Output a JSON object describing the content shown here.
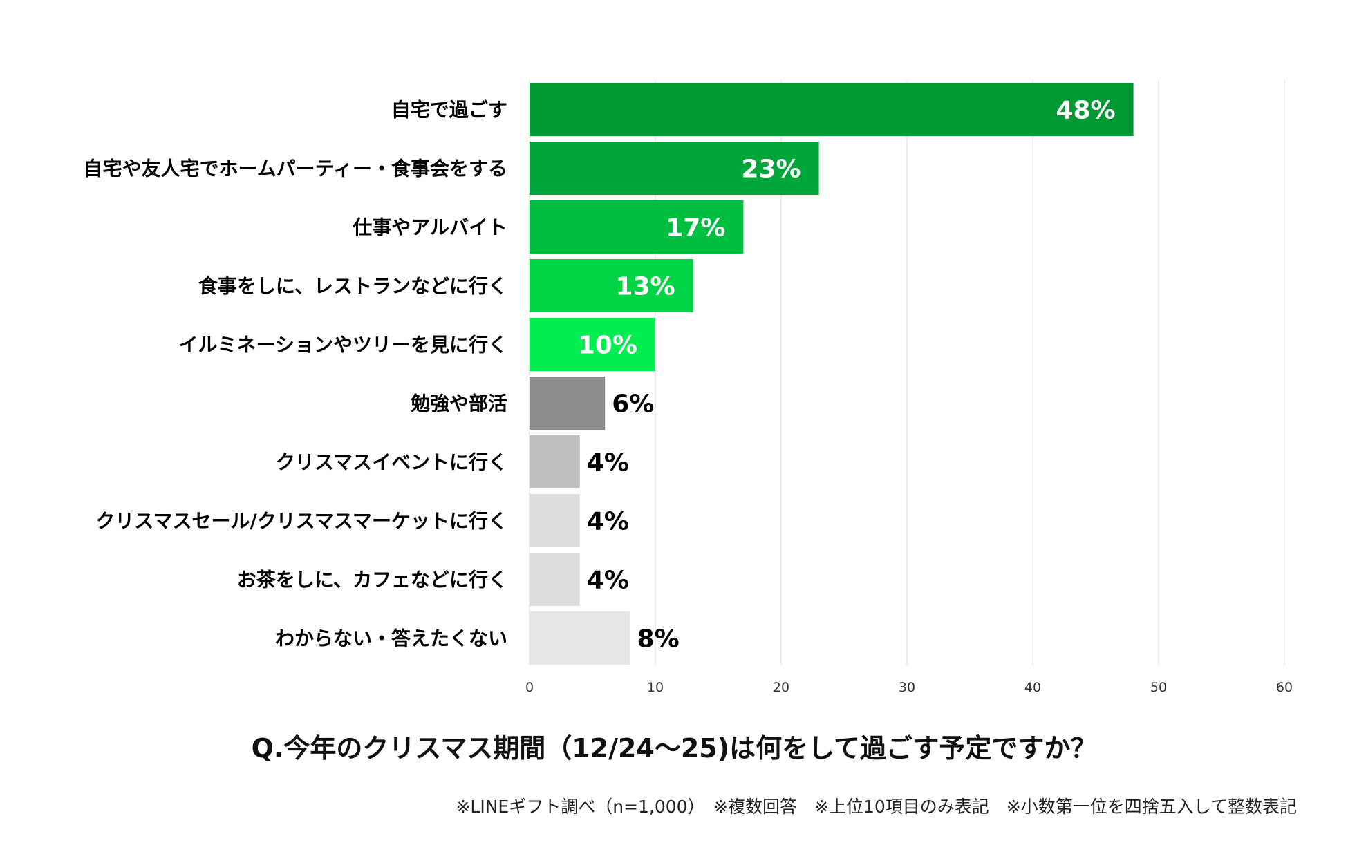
{
  "chart_data": {
    "type": "bar",
    "orientation": "horizontal",
    "categories": [
      "自宅で過ごす",
      "自宅や友人宅でホームパーティー・食事会をする",
      "仕事やアルバイト",
      "食事をしに、レストランなどに行く",
      "イルミネーションやツリーを見に行く",
      "勉強や部活",
      "クリスマスイベントに行く",
      "クリスマスセール/クリスマスマーケットに行く",
      "お茶をしに、カフェなどに行く",
      "わからない・答えたくない"
    ],
    "values": [
      48,
      23,
      17,
      13,
      10,
      6,
      4,
      4,
      4,
      8
    ],
    "value_labels": [
      "48%",
      "23%",
      "17%",
      "13%",
      "10%",
      "6%",
      "4%",
      "4%",
      "4%",
      "8%"
    ],
    "bar_colors": [
      "#009933",
      "#00A63A",
      "#00BE40",
      "#00D444",
      "#00EE50",
      "#8C8C8C",
      "#BFBFBF",
      "#DCDCDC",
      "#DCDCDC",
      "#E6E6E6"
    ],
    "label_colors": [
      "#FFFFFF",
      "#FFFFFF",
      "#FFFFFF",
      "#FFFFFF",
      "#FFFFFF",
      "#000000",
      "#000000",
      "#000000",
      "#000000",
      "#000000"
    ],
    "label_inside": [
      true,
      true,
      true,
      true,
      true,
      false,
      false,
      false,
      false,
      false
    ],
    "xlim": [
      0,
      60
    ],
    "xticks": [
      0,
      10,
      20,
      30,
      40,
      50,
      60
    ],
    "xtick_labels": [
      "0",
      "10",
      "20",
      "30",
      "40",
      "50",
      "60"
    ],
    "grid": true,
    "legend": "none",
    "title": "Q.今年のクリスマス期間（12/24～25)は何をして過ごす予定ですか？"
  },
  "footnote": "※LINEギフト調べ（n=1,000）　※複数回答　※上位10項目のみ表記　※小数第一位を四捨五入して整数表記",
  "colors": {
    "gridline": "#E6E6E6"
  }
}
